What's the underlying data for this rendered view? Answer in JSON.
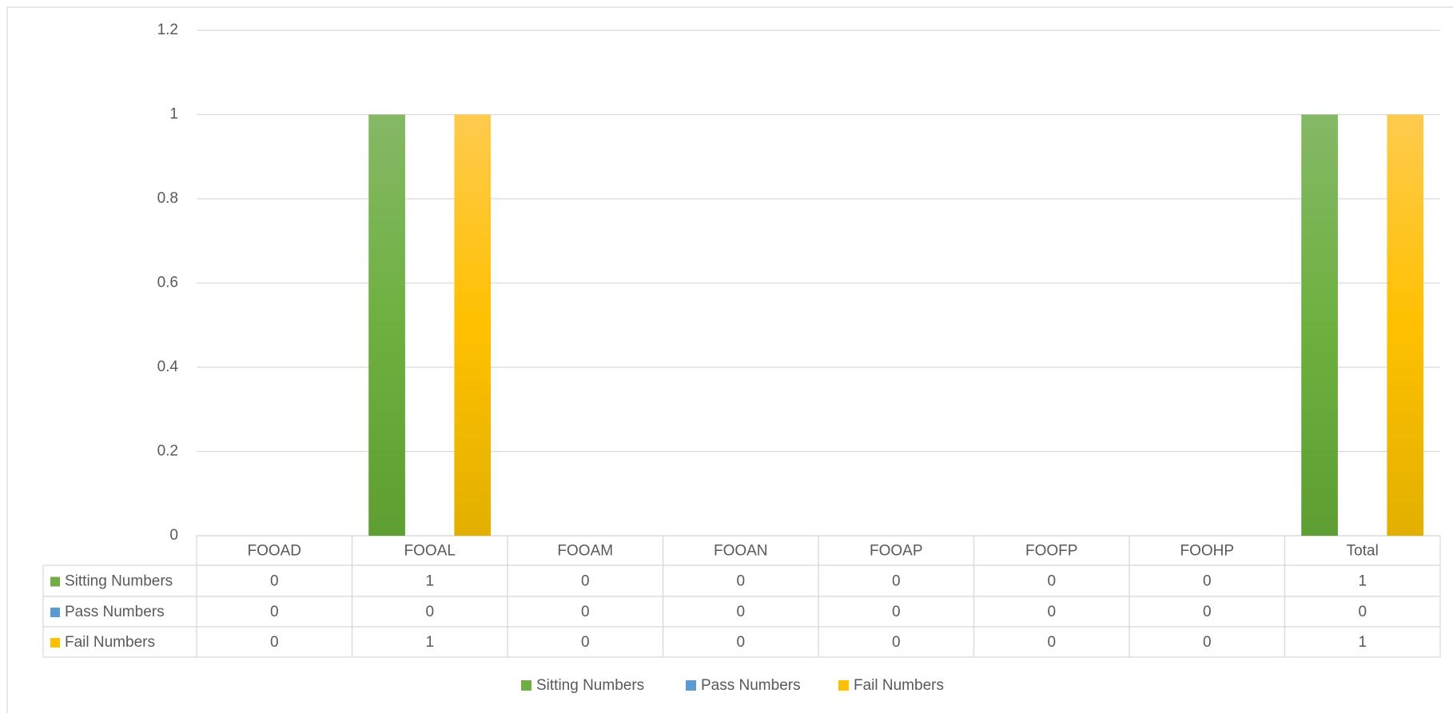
{
  "chart_data": {
    "type": "bar",
    "categories": [
      "FOOAD",
      "FOOAL",
      "FOOAM",
      "FOOAN",
      "FOOAP",
      "FOOFP",
      "FOOHP",
      "Total"
    ],
    "series": [
      {
        "name": "Sitting Numbers",
        "color": "#70ad47",
        "values": [
          0,
          1,
          0,
          0,
          0,
          0,
          0,
          1
        ]
      },
      {
        "name": "Pass Numbers",
        "color": "#5b9bd5",
        "values": [
          0,
          0,
          0,
          0,
          0,
          0,
          0,
          0
        ]
      },
      {
        "name": "Fail Numbers",
        "color": "#ffc000",
        "values": [
          0,
          1,
          0,
          0,
          0,
          0,
          0,
          1
        ]
      }
    ],
    "ylim": [
      0,
      1.2
    ],
    "yticks": [
      0,
      0.2,
      0.4,
      0.6,
      0.8,
      1,
      1.2
    ],
    "grid": true,
    "legend": "bottom"
  }
}
